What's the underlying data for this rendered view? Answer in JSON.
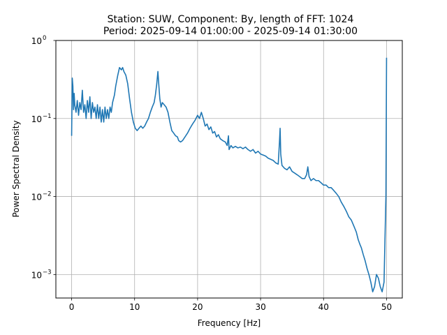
{
  "chart_data": {
    "type": "line",
    "title_line1": "Station: SUW, Component: By, length of FFT: 1024",
    "title_line2": "Period: 2025-09-14 01:00:00 - 2025-09-14 01:30:00",
    "xlabel": "Frequency [Hz]",
    "ylabel": "Power Spectral Density",
    "xlim": [
      -2.5,
      52.5
    ],
    "ylim": [
      0.0005,
      1
    ],
    "yscale": "log",
    "grid": true,
    "line_color": "#1f77b4",
    "x_ticks": [
      0,
      10,
      20,
      30,
      40,
      50
    ],
    "x_tick_labels": [
      "0",
      "10",
      "20",
      "30",
      "40",
      "50"
    ],
    "y_ticks": [
      {
        "value": 0.001,
        "base": "10",
        "exp": "−3"
      },
      {
        "value": 0.01,
        "base": "10",
        "exp": "−2"
      },
      {
        "value": 0.1,
        "base": "10",
        "exp": "−1"
      },
      {
        "value": 1,
        "base": "10",
        "exp": "0"
      }
    ],
    "series": [
      {
        "points": [
          [
            0.0,
            0.06
          ],
          [
            0.1,
            0.33
          ],
          [
            0.2,
            0.26
          ],
          [
            0.3,
            0.13
          ],
          [
            0.4,
            0.21
          ],
          [
            0.5,
            0.15
          ],
          [
            0.7,
            0.12
          ],
          [
            0.9,
            0.17
          ],
          [
            1.1,
            0.11
          ],
          [
            1.3,
            0.16
          ],
          [
            1.5,
            0.13
          ],
          [
            1.7,
            0.23
          ],
          [
            1.9,
            0.12
          ],
          [
            2.1,
            0.15
          ],
          [
            2.3,
            0.1
          ],
          [
            2.5,
            0.17
          ],
          [
            2.7,
            0.12
          ],
          [
            2.9,
            0.19
          ],
          [
            3.1,
            0.1
          ],
          [
            3.3,
            0.16
          ],
          [
            3.5,
            0.12
          ],
          [
            3.7,
            0.14
          ],
          [
            3.9,
            0.1
          ],
          [
            4.1,
            0.15
          ],
          [
            4.3,
            0.1
          ],
          [
            4.5,
            0.14
          ],
          [
            4.7,
            0.09
          ],
          [
            4.9,
            0.13
          ],
          [
            5.1,
            0.09
          ],
          [
            5.3,
            0.14
          ],
          [
            5.5,
            0.1
          ],
          [
            5.7,
            0.13
          ],
          [
            5.9,
            0.1
          ],
          [
            6.1,
            0.14
          ],
          [
            6.3,
            0.12
          ],
          [
            6.5,
            0.16
          ],
          [
            6.8,
            0.2
          ],
          [
            7.0,
            0.26
          ],
          [
            7.3,
            0.35
          ],
          [
            7.6,
            0.45
          ],
          [
            7.9,
            0.42
          ],
          [
            8.1,
            0.45
          ],
          [
            8.3,
            0.4
          ],
          [
            8.6,
            0.36
          ],
          [
            8.9,
            0.28
          ],
          [
            9.2,
            0.18
          ],
          [
            9.5,
            0.12
          ],
          [
            9.8,
            0.09
          ],
          [
            10.1,
            0.075
          ],
          [
            10.4,
            0.07
          ],
          [
            10.7,
            0.075
          ],
          [
            11.0,
            0.08
          ],
          [
            11.3,
            0.075
          ],
          [
            11.6,
            0.08
          ],
          [
            11.9,
            0.09
          ],
          [
            12.2,
            0.1
          ],
          [
            12.5,
            0.12
          ],
          [
            12.8,
            0.14
          ],
          [
            13.1,
            0.16
          ],
          [
            13.3,
            0.2
          ],
          [
            13.5,
            0.27
          ],
          [
            13.7,
            0.4
          ],
          [
            13.8,
            0.3
          ],
          [
            14.0,
            0.18
          ],
          [
            14.2,
            0.14
          ],
          [
            14.4,
            0.16
          ],
          [
            14.7,
            0.15
          ],
          [
            15.0,
            0.14
          ],
          [
            15.3,
            0.12
          ],
          [
            15.6,
            0.09
          ],
          [
            15.9,
            0.07
          ],
          [
            16.2,
            0.065
          ],
          [
            16.5,
            0.06
          ],
          [
            16.8,
            0.058
          ],
          [
            17.0,
            0.052
          ],
          [
            17.3,
            0.05
          ],
          [
            17.6,
            0.052
          ],
          [
            18.0,
            0.058
          ],
          [
            18.4,
            0.065
          ],
          [
            18.8,
            0.075
          ],
          [
            19.2,
            0.085
          ],
          [
            19.6,
            0.095
          ],
          [
            20.0,
            0.11
          ],
          [
            20.3,
            0.1
          ],
          [
            20.6,
            0.12
          ],
          [
            20.9,
            0.1
          ],
          [
            21.2,
            0.08
          ],
          [
            21.5,
            0.085
          ],
          [
            21.8,
            0.072
          ],
          [
            22.1,
            0.078
          ],
          [
            22.4,
            0.065
          ],
          [
            22.7,
            0.068
          ],
          [
            23.0,
            0.058
          ],
          [
            23.3,
            0.062
          ],
          [
            23.6,
            0.055
          ],
          [
            24.0,
            0.052
          ],
          [
            24.4,
            0.05
          ],
          [
            24.7,
            0.045
          ],
          [
            24.9,
            0.06
          ],
          [
            25.0,
            0.04
          ],
          [
            25.3,
            0.045
          ],
          [
            25.6,
            0.042
          ],
          [
            26.0,
            0.044
          ],
          [
            26.4,
            0.042
          ],
          [
            26.8,
            0.043
          ],
          [
            27.2,
            0.041
          ],
          [
            27.6,
            0.043
          ],
          [
            28.0,
            0.04
          ],
          [
            28.4,
            0.038
          ],
          [
            28.8,
            0.04
          ],
          [
            29.2,
            0.036
          ],
          [
            29.6,
            0.038
          ],
          [
            30.0,
            0.035
          ],
          [
            30.4,
            0.034
          ],
          [
            30.8,
            0.033
          ],
          [
            31.2,
            0.031
          ],
          [
            31.6,
            0.03
          ],
          [
            32.0,
            0.029
          ],
          [
            32.4,
            0.027
          ],
          [
            32.8,
            0.026
          ],
          [
            33.0,
            0.05
          ],
          [
            33.1,
            0.075
          ],
          [
            33.2,
            0.035
          ],
          [
            33.4,
            0.025
          ],
          [
            33.8,
            0.023
          ],
          [
            34.2,
            0.022
          ],
          [
            34.6,
            0.024
          ],
          [
            35.0,
            0.021
          ],
          [
            35.4,
            0.02
          ],
          [
            35.8,
            0.019
          ],
          [
            36.2,
            0.018
          ],
          [
            36.6,
            0.017
          ],
          [
            37.0,
            0.017
          ],
          [
            37.3,
            0.019
          ],
          [
            37.5,
            0.024
          ],
          [
            37.7,
            0.018
          ],
          [
            38.0,
            0.016
          ],
          [
            38.4,
            0.017
          ],
          [
            38.8,
            0.016
          ],
          [
            39.2,
            0.016
          ],
          [
            39.6,
            0.015
          ],
          [
            40.0,
            0.014
          ],
          [
            40.4,
            0.014
          ],
          [
            40.8,
            0.013
          ],
          [
            41.2,
            0.013
          ],
          [
            41.6,
            0.012
          ],
          [
            42.0,
            0.011
          ],
          [
            42.4,
            0.01
          ],
          [
            42.8,
            0.0085
          ],
          [
            43.2,
            0.0075
          ],
          [
            43.6,
            0.0065
          ],
          [
            44.0,
            0.0055
          ],
          [
            44.4,
            0.005
          ],
          [
            44.8,
            0.0042
          ],
          [
            45.2,
            0.0035
          ],
          [
            45.5,
            0.0028
          ],
          [
            45.8,
            0.0024
          ],
          [
            46.0,
            0.0022
          ],
          [
            46.3,
            0.0018
          ],
          [
            46.6,
            0.0015
          ],
          [
            46.9,
            0.0012
          ],
          [
            47.2,
            0.001
          ],
          [
            47.5,
            0.0008
          ],
          [
            47.8,
            0.0006
          ],
          [
            48.1,
            0.0007
          ],
          [
            48.4,
            0.001
          ],
          [
            48.7,
            0.0009
          ],
          [
            49.0,
            0.0007
          ],
          [
            49.3,
            0.0006
          ],
          [
            49.6,
            0.0008
          ],
          [
            49.9,
            0.01
          ],
          [
            50.0,
            0.6
          ]
        ]
      }
    ]
  }
}
